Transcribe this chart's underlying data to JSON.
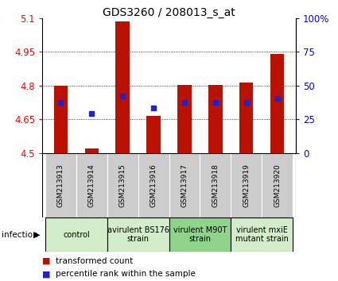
{
  "title": "GDS3260 / 208013_s_at",
  "samples": [
    "GSM213913",
    "GSM213914",
    "GSM213915",
    "GSM213916",
    "GSM213917",
    "GSM213918",
    "GSM213919",
    "GSM213920"
  ],
  "transformed_counts": [
    4.8,
    4.52,
    5.085,
    4.665,
    4.805,
    4.805,
    4.815,
    4.94
  ],
  "percentile_ranks": [
    4.725,
    4.675,
    4.755,
    4.7,
    4.725,
    4.725,
    4.725,
    4.745
  ],
  "ylim_left": [
    4.5,
    5.1
  ],
  "ylim_right": [
    0,
    100
  ],
  "yticks_left": [
    4.5,
    4.65,
    4.8,
    4.95,
    5.1
  ],
  "yticks_right": [
    0,
    25,
    50,
    75,
    100
  ],
  "ytick_labels_right": [
    "0",
    "25",
    "50",
    "75",
    "100%"
  ],
  "groups": [
    {
      "label": "control",
      "indices": [
        0,
        1
      ],
      "color": "#d4edc9"
    },
    {
      "label": "avirulent BS176\nstrain",
      "indices": [
        2,
        3
      ],
      "color": "#d4edc9"
    },
    {
      "label": "virulent M90T\nstrain",
      "indices": [
        4,
        5
      ],
      "color": "#8fd48a"
    },
    {
      "label": "virulent mxiE\nmutant strain",
      "indices": [
        6,
        7
      ],
      "color": "#d4edc9"
    }
  ],
  "bar_color": "#bb1100",
  "dot_color": "#2222cc",
  "bar_width": 0.45,
  "bar_bottom": 4.5,
  "background_plot": "#ffffff",
  "sample_box_color": "#cccccc",
  "grid_color": "#000000",
  "title_fontsize": 10,
  "tick_fontsize": 8.5,
  "sample_fontsize": 6.5,
  "group_fontsize": 7,
  "legend_fontsize": 7.5
}
